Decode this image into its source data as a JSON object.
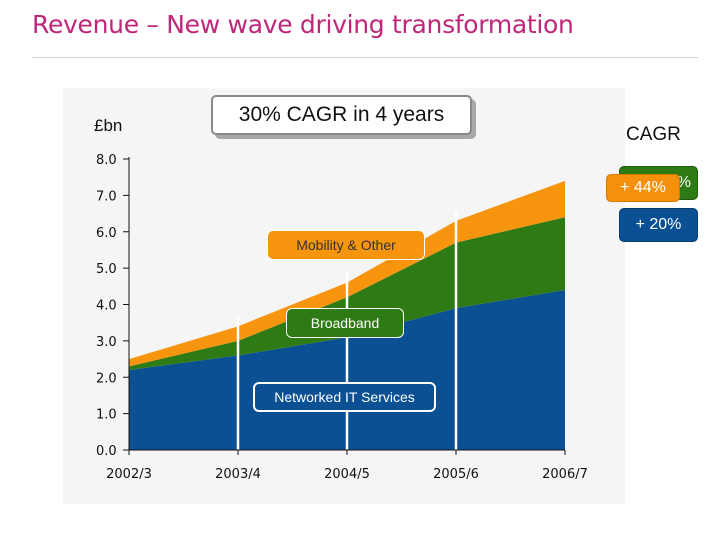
{
  "slide": {
    "title": "Revenue – New wave driving transformation"
  },
  "callout": {
    "text": "30% CAGR in 4 years"
  },
  "cagr": {
    "heading": "CAGR",
    "badges": [
      {
        "series": "Broadband",
        "text": "%",
        "color": "#2e7a14"
      },
      {
        "series": "Mobility & Other",
        "text": "+ 44%",
        "color": "#f5900d"
      },
      {
        "series": "Networked IT Services",
        "text": "+ 20%",
        "color": "#0a5092"
      }
    ]
  },
  "chart_data": {
    "type": "area",
    "stacked": true,
    "ylabel": "£bn",
    "ylim": [
      0,
      8
    ],
    "yticks": [
      "0.0",
      "1.0",
      "2.0",
      "3.0",
      "4.0",
      "5.0",
      "6.0",
      "7.0",
      "8.0"
    ],
    "categories": [
      "2002/3",
      "2003/4",
      "2004/5",
      "2005/6",
      "2006/7"
    ],
    "grid": {
      "vertical_lines_at": [
        "2003/4",
        "2004/5",
        "2005/6"
      ],
      "color": "#ffffff"
    },
    "legend": "inline labels",
    "series": [
      {
        "name": "Networked IT Services",
        "color": "#0a5092",
        "values": [
          2.2,
          2.6,
          3.1,
          3.9,
          4.4
        ]
      },
      {
        "name": "Broadband",
        "color": "#2e7a14",
        "values": [
          0.1,
          0.4,
          1.1,
          1.8,
          2.0
        ]
      },
      {
        "name": "Mobility & Other",
        "color": "#f7950f",
        "values": [
          0.2,
          0.4,
          0.4,
          0.6,
          1.0
        ]
      }
    ]
  }
}
